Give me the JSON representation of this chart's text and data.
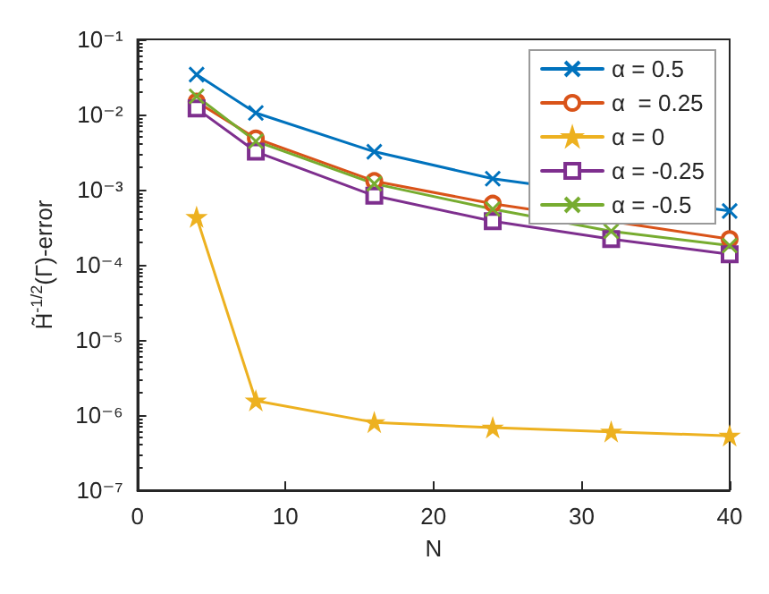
{
  "chart_data": {
    "type": "line",
    "xlabel": "N",
    "ylabel": "H̃$^{-1/2}$(Γ)-error",
    "log": "y",
    "grid": false,
    "legend": "top right",
    "x": [
      4,
      8,
      16,
      24,
      32,
      40
    ],
    "xlim": [
      0,
      40
    ],
    "xticks": [
      0,
      10,
      20,
      30,
      40
    ],
    "ylim": [
      1e-07,
      0.1
    ],
    "yticks": [
      {
        "value": 1e-07,
        "label": "10⁻⁷"
      },
      {
        "value": 1e-06,
        "label": "10⁻⁶"
      },
      {
        "value": 1e-05,
        "label": "10⁻⁵"
      },
      {
        "value": 0.0001,
        "label": "10⁻⁴"
      },
      {
        "value": 0.001,
        "label": "10⁻³"
      },
      {
        "value": 0.01,
        "label": "10⁻²"
      },
      {
        "value": 0.1,
        "label": "10⁻¹"
      }
    ],
    "series": [
      {
        "name": "α = 0.5",
        "color": "#0072bd",
        "marker": "cross",
        "values": [
          0.034,
          0.0105,
          0.0032,
          0.0014,
          null,
          0.00052
        ]
      },
      {
        "name": "α  = 0.25",
        "color": "#d95319",
        "marker": "circle",
        "values": [
          0.0148,
          0.0048,
          0.0013,
          0.00065,
          null,
          0.00022
        ]
      },
      {
        "name": "α = 0",
        "color": "#edb120",
        "marker": "star",
        "values": [
          0.00043,
          1.55e-06,
          8e-07,
          6.8e-07,
          6e-07,
          5.3e-07
        ]
      },
      {
        "name": "α = -0.25",
        "color": "#7e2f8e",
        "marker": "square",
        "values": [
          0.012,
          0.0032,
          0.00083,
          0.00038,
          0.00022,
          0.000138
        ]
      },
      {
        "name": "α = -0.5",
        "color": "#77ac30",
        "marker": "cross",
        "values": [
          0.0174,
          0.0044,
          0.0012,
          0.00055,
          0.00028,
          0.00018
        ]
      }
    ]
  }
}
